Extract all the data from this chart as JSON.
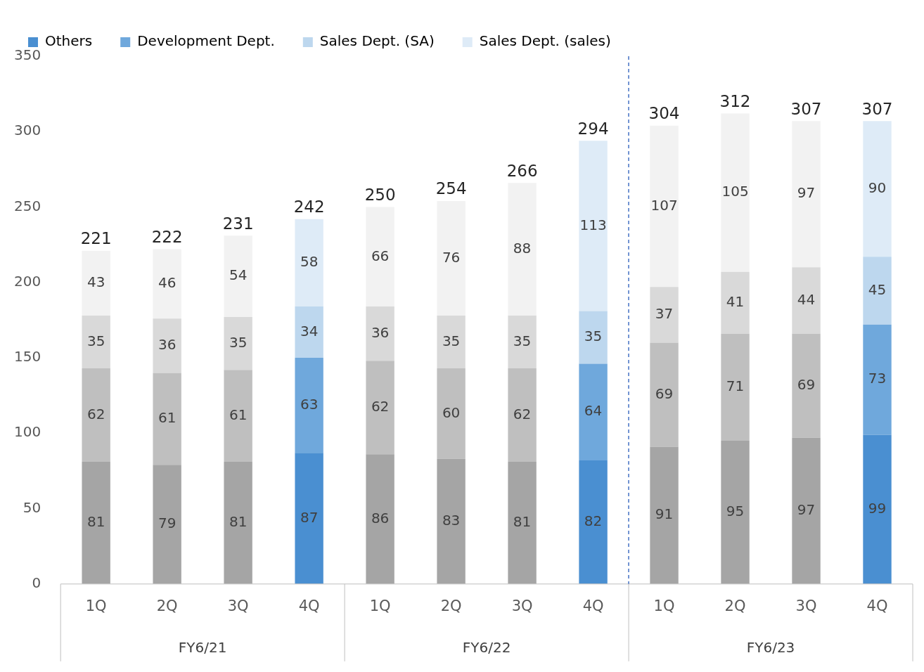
{
  "chart_data": {
    "type": "bar",
    "stacked": true,
    "data_labels": true,
    "legend": "top left",
    "grid": false,
    "categories": [
      "1Q",
      "2Q",
      "3Q",
      "4Q",
      "1Q",
      "2Q",
      "3Q",
      "4Q",
      "1Q",
      "2Q",
      "3Q",
      "4Q"
    ],
    "ylim": [
      0,
      350
    ],
    "yticks": [
      0,
      50,
      100,
      150,
      200,
      250,
      300,
      350
    ],
    "series": [
      {
        "name": "Others",
        "color": "#4a8fd1",
        "colors": [
          "#a5a5a5",
          "#a5a5a5",
          "#a5a5a5",
          "#4a8fd1",
          "#a5a5a5",
          "#a5a5a5",
          "#a5a5a5",
          "#4a8fd1",
          "#a5a5a5",
          "#a5a5a5",
          "#a5a5a5",
          "#4a8fd1"
        ],
        "values": [
          81,
          79,
          81,
          87,
          86,
          83,
          81,
          82,
          91,
          95,
          97,
          99
        ]
      },
      {
        "name": "Development Dept.",
        "color": "#6fa8dc",
        "colors": [
          "#bfbfbf",
          "#bfbfbf",
          "#bfbfbf",
          "#6fa8dc",
          "#bfbfbf",
          "#bfbfbf",
          "#bfbfbf",
          "#6fa8dc",
          "#bfbfbf",
          "#bfbfbf",
          "#bfbfbf",
          "#6fa8dc"
        ],
        "values": [
          62,
          61,
          61,
          63,
          62,
          60,
          62,
          64,
          69,
          71,
          69,
          73
        ]
      },
      {
        "name": "Sales Dept. (SA)",
        "color": "#bdd7ee",
        "colors": [
          "#d9d9d9",
          "#d9d9d9",
          "#d9d9d9",
          "#bdd7ee",
          "#d9d9d9",
          "#d9d9d9",
          "#d9d9d9",
          "#bdd7ee",
          "#d9d9d9",
          "#d9d9d9",
          "#d9d9d9",
          "#bdd7ee"
        ],
        "values": [
          35,
          36,
          35,
          34,
          36,
          35,
          35,
          35,
          37,
          41,
          44,
          45
        ]
      },
      {
        "name": "Sales Dept. (sales)",
        "color": "#deebf7",
        "colors": [
          "#f2f2f2",
          "#f2f2f2",
          "#f2f2f2",
          "#deebf7",
          "#f2f2f2",
          "#f2f2f2",
          "#f2f2f2",
          "#deebf7",
          "#f2f2f2",
          "#f2f2f2",
          "#f2f2f2",
          "#deebf7"
        ],
        "values": [
          43,
          46,
          54,
          58,
          66,
          76,
          88,
          113,
          107,
          105,
          97,
          90
        ]
      }
    ],
    "totals": [
      "221",
      "222",
      "231",
      "242",
      "250",
      "254",
      "266",
      "294",
      "304",
      "312",
      "307",
      "307"
    ],
    "annotations": [
      "FY6/21",
      "FY6/22",
      "FY6/23"
    ]
  }
}
